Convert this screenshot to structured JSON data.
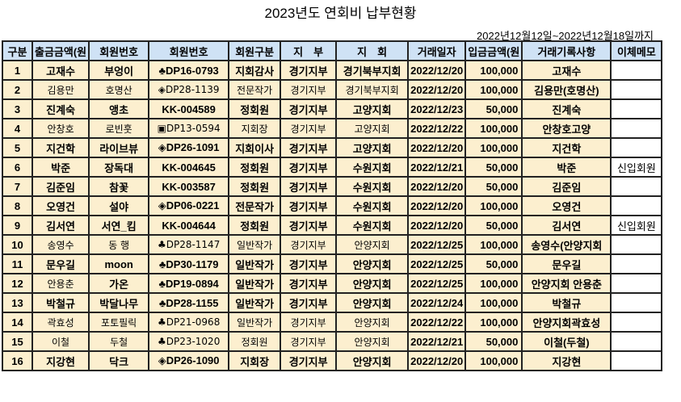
{
  "title": "2023년도 연회비 납부현황",
  "period": "2022년12월12일~2022년12월18일까지",
  "columns": [
    "구분",
    "출금금액(원",
    "회원번호",
    "회원번호",
    "회원구분",
    "지　부",
    "지　회",
    "거래일자",
    "입금금액(원",
    "거래기록사항",
    "이체메모"
  ],
  "rows": [
    [
      "1",
      "고재수",
      "부엉이",
      "♣DP16-0793",
      "지회감사",
      "경기지부",
      "경기북부지회",
      "2022/12/20",
      "100,000",
      "고재수",
      ""
    ],
    [
      "2",
      "김용만",
      "호명산",
      "◈DP28-1139",
      "전문작가",
      "경기지부",
      "경기북부지회",
      "2022/12/20",
      "100,000",
      "김용만(호명산)",
      ""
    ],
    [
      "3",
      "진계숙",
      "앵초",
      "KK-004589",
      "정회원",
      "경기지부",
      "고양지회",
      "2022/12/23",
      "50,000",
      "진계숙",
      ""
    ],
    [
      "4",
      "안창호",
      "로빈훗",
      "▣DP13-0594",
      "지회장",
      "경기지부",
      "고양지회",
      "2022/12/22",
      "100,000",
      "안창호고양",
      ""
    ],
    [
      "5",
      "지건학",
      "라이브뷰",
      "◈DP26-1091",
      "지회이사",
      "경기지부",
      "고양지회",
      "2022/12/20",
      "100,000",
      "지건학",
      ""
    ],
    [
      "6",
      "박준",
      "장독대",
      "KK-004645",
      "정회원",
      "경기지부",
      "수원지회",
      "2022/12/21",
      "50,000",
      "박준",
      "신입회원"
    ],
    [
      "7",
      "김준임",
      "참꽃",
      "KK-003587",
      "정회원",
      "경기지부",
      "수원지회",
      "2022/12/20",
      "50,000",
      "김준임",
      ""
    ],
    [
      "8",
      "오영건",
      "설야",
      "◈DP06-0221",
      "전문작가",
      "경기지부",
      "수원지회",
      "2022/12/20",
      "100,000",
      "오영건",
      ""
    ],
    [
      "9",
      "김서연",
      "서연_킴",
      "KK-004644",
      "정회원",
      "경기지부",
      "수원지회",
      "2022/12/20",
      "50,000",
      "김서연",
      "신입회원"
    ],
    [
      "10",
      "송영수",
      "동 행",
      "♣DP28-1147",
      "일반작가",
      "경기지부",
      "안양지회",
      "2022/12/25",
      "100,000",
      "송영수(안양지회",
      ""
    ],
    [
      "11",
      "문우길",
      "moon",
      "♣DP30-1179",
      "일반작가",
      "경기지부",
      "안양지회",
      "2022/12/25",
      "50,000",
      "문우길",
      ""
    ],
    [
      "12",
      "안용춘",
      "가온",
      "♣DP19-0894",
      "일반작가",
      "경기지부",
      "안양지회",
      "2022/12/25",
      "100,000",
      "안양지회 안용춘",
      ""
    ],
    [
      "13",
      "박철규",
      "박달나무",
      "♣DP28-1155",
      "일반작가",
      "경기지부",
      "안양지회",
      "2022/12/24",
      "100,000",
      "박철규",
      ""
    ],
    [
      "14",
      "곽효성",
      "포토필릭",
      "♣DP21-0968",
      "일반작가",
      "경기지부",
      "안양지회",
      "2022/12/22",
      "100,000",
      "안양지회곽효성",
      ""
    ],
    [
      "15",
      "이철",
      "두철",
      "♣DP23-1020",
      "정회원",
      "경기지부",
      "안양지회",
      "2022/12/21",
      "50,000",
      "이철(두철)",
      ""
    ],
    [
      "16",
      "지강현",
      "닥크",
      "◈DP26-1090",
      "지회장",
      "경기지부",
      "안양지회",
      "2022/12/20",
      "100,000",
      "지강현",
      ""
    ]
  ],
  "colors": {
    "header_bg": "#cfe2f5",
    "cell_bg": "#fcefcf",
    "memo_bg": "#ffffff"
  }
}
